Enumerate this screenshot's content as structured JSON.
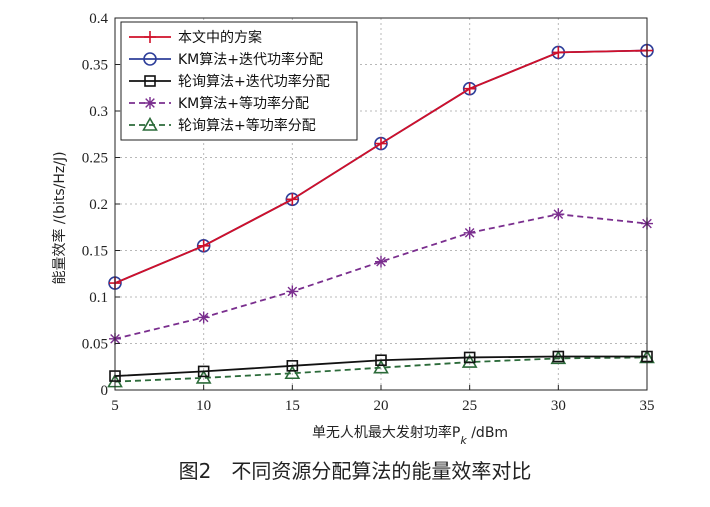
{
  "chart_data": {
    "type": "line",
    "title": "",
    "xlabel": "单无人机最大发射功率P",
    "xlabel_sub": "k",
    "xlabel_unit": " /dBm",
    "ylabel": "能量效率 /(bits/Hz/J)",
    "x": [
      5,
      10,
      15,
      20,
      25,
      30,
      35
    ],
    "xlim": [
      5,
      35
    ],
    "ylim": [
      0,
      0.4
    ],
    "xticks": [
      "5",
      "10",
      "15",
      "20",
      "25",
      "30",
      "35"
    ],
    "yticks": [
      "0",
      "0.05",
      "0.1",
      "0.15",
      "0.2",
      "0.25",
      "0.3",
      "0.35",
      "0.4"
    ],
    "grid": true,
    "legend_position": "top-left",
    "series": [
      {
        "name": "本文中的方案",
        "color": "#d0102a",
        "marker": "plus",
        "dash": "solid",
        "values": [
          0.115,
          0.155,
          0.205,
          0.265,
          0.324,
          0.363,
          0.365
        ]
      },
      {
        "name": "KM算法+迭代功率分配",
        "color": "#2e3f9a",
        "marker": "circle",
        "dash": "solid",
        "values": [
          0.115,
          0.155,
          0.205,
          0.265,
          0.324,
          0.363,
          0.365
        ]
      },
      {
        "name": "轮询算法+迭代功率分配",
        "color": "#111111",
        "marker": "square",
        "dash": "solid",
        "values": [
          0.015,
          0.02,
          0.026,
          0.032,
          0.035,
          0.036,
          0.036
        ]
      },
      {
        "name": "KM算法+等功率分配",
        "color": "#7a2e8e",
        "marker": "star",
        "dash": "dashed",
        "values": [
          0.055,
          0.078,
          0.106,
          0.138,
          0.169,
          0.189,
          0.179
        ]
      },
      {
        "name": "轮询算法+等功率分配",
        "color": "#2c6b3a",
        "marker": "triangle",
        "dash": "dashed",
        "values": [
          0.009,
          0.013,
          0.018,
          0.024,
          0.03,
          0.034,
          0.035
        ]
      }
    ]
  },
  "caption": "图2　不同资源分配算法的能量效率对比"
}
